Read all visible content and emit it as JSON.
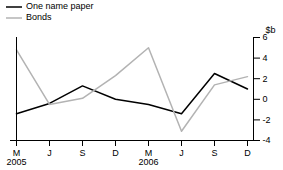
{
  "chart_data": {
    "type": "line",
    "categories": [
      "M\n2005",
      "J",
      "S",
      "D",
      "M\n2006",
      "J",
      "S",
      "D"
    ],
    "series": [
      {
        "name": "One name paper",
        "color": "#000000",
        "values": [
          -1.4,
          -0.4,
          1.3,
          0.0,
          -0.5,
          -1.4,
          2.5,
          1.0
        ]
      },
      {
        "name": "Bonds",
        "color": "#b3b3b3",
        "values": [
          4.8,
          -0.5,
          0.1,
          2.3,
          5.0,
          -3.1,
          1.4,
          2.2
        ]
      }
    ],
    "y_label": "$b",
    "ylim": [
      -4,
      6
    ],
    "yticks": [
      -4,
      -2,
      0,
      2,
      4,
      6
    ],
    "grid": false,
    "legend": "top-left"
  }
}
